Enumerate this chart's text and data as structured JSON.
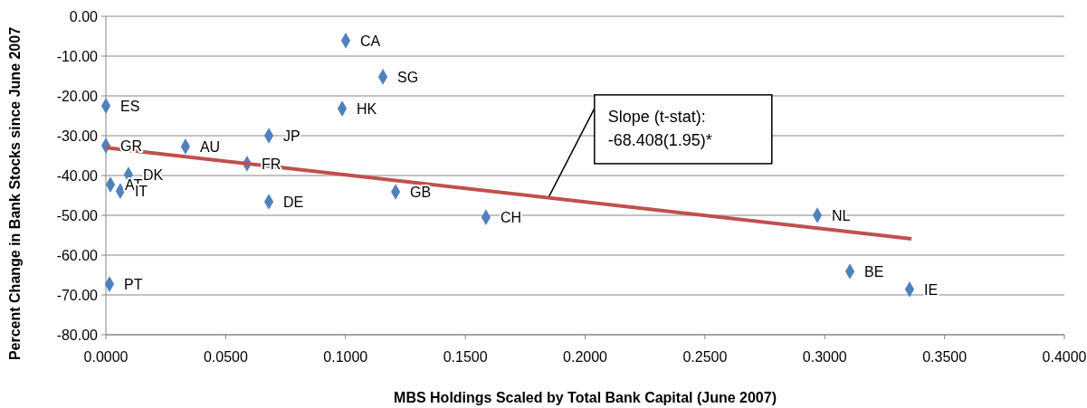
{
  "chart_data": {
    "type": "scatter",
    "xlabel": "MBS Holdings Scaled by Total Bank Capital (June 2007)",
    "ylabel": "Percent Change in Bank Stocks since June 2007",
    "xlim": [
      0,
      0.4
    ],
    "xticks": [
      {
        "value": 0,
        "label": "0.0000"
      },
      {
        "value": 0.05,
        "label": "0.0500"
      },
      {
        "value": 0.1,
        "label": "0.1000"
      },
      {
        "value": 0.15,
        "label": "0.1500"
      },
      {
        "value": 0.2,
        "label": "0.2000"
      },
      {
        "value": 0.25,
        "label": "0.2500"
      },
      {
        "value": 0.3,
        "label": "0.3000"
      },
      {
        "value": 0.35,
        "label": "0.3500"
      },
      {
        "value": 0.4,
        "label": "0.4000"
      }
    ],
    "ylim": [
      -80,
      0
    ],
    "yticks": [
      {
        "value": 0,
        "label": "0.00"
      },
      {
        "value": -10,
        "label": "-10.00"
      },
      {
        "value": -20,
        "label": "-20.00"
      },
      {
        "value": -30,
        "label": "-30.00"
      },
      {
        "value": -40,
        "label": "-40.00"
      },
      {
        "value": -50,
        "label": "-50.00"
      },
      {
        "value": -60,
        "label": "-60.00"
      },
      {
        "value": -70,
        "label": "-70.00"
      },
      {
        "value": -80,
        "label": "-80.00"
      }
    ],
    "grid": "y",
    "marker": "diamond",
    "series": [
      {
        "color": "#4f81bd",
        "x": [
          0.1001,
          0.1156,
          0.0,
          0.0986,
          0.068,
          0.0,
          0.0332,
          0.0589,
          0.0094,
          0.0019,
          0.006,
          0.068,
          0.1209,
          0.1586,
          0.2969,
          0.3105,
          0.3354,
          0.0015
        ],
        "values": [
          -6.1,
          -15.2,
          -22.5,
          -23.2,
          -30.0,
          -32.5,
          -32.7,
          -37.0,
          -39.8,
          -42.3,
          -43.9,
          -46.6,
          -44.1,
          -50.5,
          -50.0,
          -64.1,
          -68.6,
          -67.3
        ],
        "value_labels": [
          "CA",
          "SG",
          "ES",
          "HK",
          "JP",
          "GR",
          "AU",
          "FR",
          "DK",
          "AT",
          "IT",
          "DE",
          "GB",
          "CH",
          "NL",
          "BE",
          "IE",
          "PT"
        ]
      },
      {
        "type": "line",
        "marker": "none",
        "color": "#c0504d",
        "x": [
          0.0,
          0.3362
        ],
        "values": [
          -33.0,
          -55.9
        ]
      }
    ],
    "annotations": [
      {
        "text": "Slope (t-stat):\n-68.408(1.95)*",
        "x": 0.185,
        "y": -45.2
      }
    ]
  }
}
